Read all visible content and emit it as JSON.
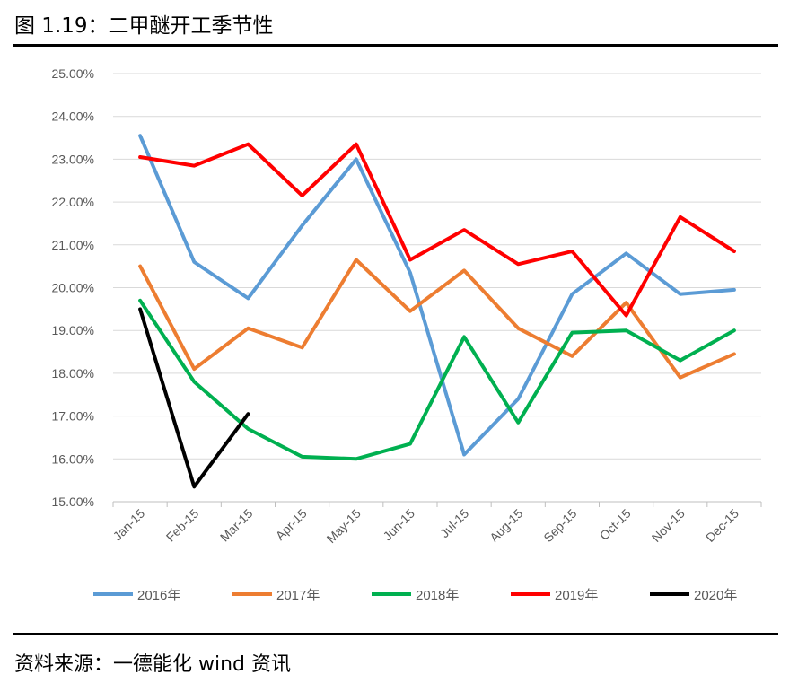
{
  "figure": {
    "title": "图 1.19：二甲醚开工季节性",
    "source": "资料来源：一德能化  wind 资讯"
  },
  "chart_data": {
    "type": "line",
    "title": "",
    "xlabel": "",
    "ylabel": "",
    "categories": [
      "Jan-15",
      "Feb-15",
      "Mar-15",
      "Apr-15",
      "May-15",
      "Jun-15",
      "Jul-15",
      "Aug-15",
      "Sep-15",
      "Oct-15",
      "Nov-15",
      "Dec-15"
    ],
    "yticks": [
      "15.00%",
      "16.00%",
      "17.00%",
      "18.00%",
      "19.00%",
      "20.00%",
      "21.00%",
      "22.00%",
      "23.00%",
      "24.00%",
      "25.00%"
    ],
    "ylim": [
      15,
      25
    ],
    "grid": true,
    "legend_position": "bottom",
    "series": [
      {
        "name": "2016年",
        "color": "#5B9BD5",
        "values": [
          23.55,
          20.6,
          19.75,
          21.45,
          23.0,
          20.35,
          16.1,
          17.4,
          19.85,
          20.8,
          19.85,
          19.95
        ]
      },
      {
        "name": "2017年",
        "color": "#ED7D31",
        "values": [
          20.5,
          18.1,
          19.05,
          18.6,
          20.65,
          19.45,
          20.4,
          19.05,
          18.4,
          19.65,
          17.9,
          18.45
        ]
      },
      {
        "name": "2018年",
        "color": "#00B050",
        "values": [
          19.7,
          17.8,
          16.7,
          16.05,
          16.0,
          16.35,
          18.85,
          16.85,
          18.95,
          19.0,
          18.3,
          19.0
        ]
      },
      {
        "name": "2019年",
        "color": "#FF0000",
        "values": [
          23.05,
          22.85,
          23.35,
          22.15,
          23.35,
          20.65,
          21.35,
          20.55,
          20.85,
          19.35,
          21.65,
          20.85
        ]
      },
      {
        "name": "2020年",
        "color": "#000000",
        "values": [
          19.5,
          15.35,
          17.05,
          null,
          null,
          null,
          null,
          null,
          null,
          null,
          null,
          null
        ]
      }
    ]
  }
}
